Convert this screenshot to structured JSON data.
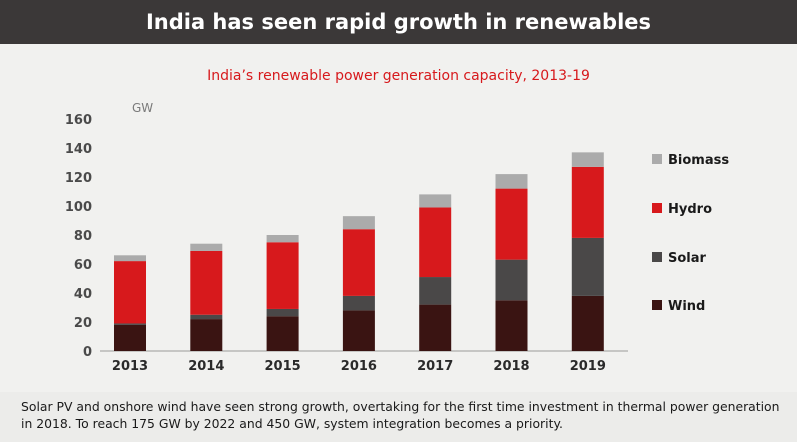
{
  "header": {
    "title": "India has seen rapid growth in renewables"
  },
  "chart_data": {
    "type": "bar",
    "stacked": true,
    "title": "India’s renewable power generation capacity, 2013-19",
    "ylabel": "GW",
    "ylim": [
      0,
      160
    ],
    "yticks": [
      0,
      20,
      40,
      60,
      80,
      100,
      120,
      140,
      160
    ],
    "grid": false,
    "legend_position": "right",
    "categories": [
      "2013",
      "2014",
      "2015",
      "2016",
      "2017",
      "2018",
      "2019"
    ],
    "series": [
      {
        "name": "Wind",
        "color": "#3a1412",
        "values": [
          18,
          22,
          24,
          28,
          32,
          35,
          38
        ]
      },
      {
        "name": "Solar",
        "color": "#4a4848",
        "values": [
          1,
          3,
          5,
          10,
          19,
          28,
          40
        ]
      },
      {
        "name": "Hydro",
        "color": "#d7191c",
        "values": [
          43,
          44,
          46,
          46,
          48,
          49,
          49
        ]
      },
      {
        "name": "Biomass",
        "color": "#ababab",
        "values": [
          4,
          5,
          5,
          9,
          9,
          10,
          10
        ]
      }
    ]
  },
  "footer": {
    "text": "Solar PV and onshore wind have seen strong growth, overtaking for the first time investment in thermal power generation in 2018. To reach 175 GW by 2022 and 450 GW, system integration becomes a priority."
  }
}
